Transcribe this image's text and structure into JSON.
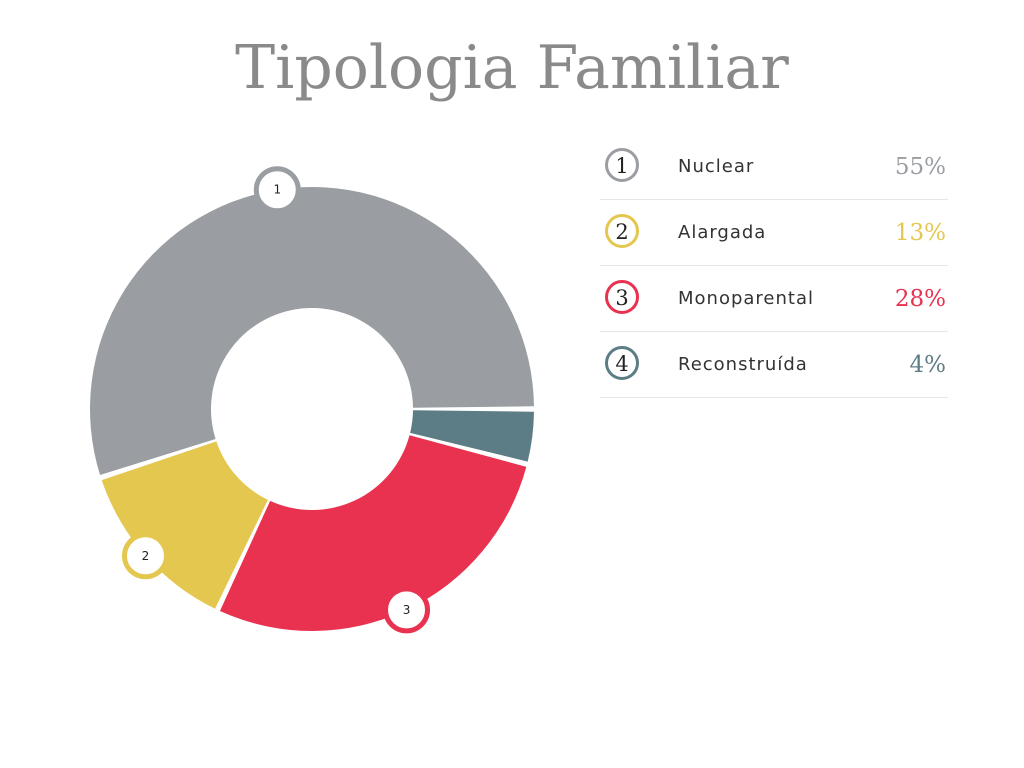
{
  "title": "Tipologia Familiar",
  "chart_data": {
    "type": "pie",
    "title": "Tipologia Familiar",
    "categories": [
      "Nuclear",
      "Alargada",
      "Monoparental",
      "Reconstruída"
    ],
    "values": [
      55,
      13,
      28,
      4
    ],
    "unit": "%",
    "labels": [
      "55%",
      "13%",
      "28%",
      "4%"
    ],
    "markers": [
      "1",
      "2",
      "3",
      "4"
    ],
    "colors": [
      "#9a9ea2",
      "#e4c74e",
      "#e8324f",
      "#5c7d85"
    ],
    "donut": true
  },
  "legend": [
    {
      "number": "1",
      "label": "Nuclear",
      "value": "55%",
      "color": "#9a9ea2"
    },
    {
      "number": "2",
      "label": "Alargada",
      "value": "13%",
      "color": "#e4c74e"
    },
    {
      "number": "3",
      "label": "Monoparental",
      "value": "28%",
      "color": "#e8324f"
    },
    {
      "number": "4",
      "label": "Reconstruída",
      "value": "4%",
      "color": "#5c7d85"
    }
  ]
}
